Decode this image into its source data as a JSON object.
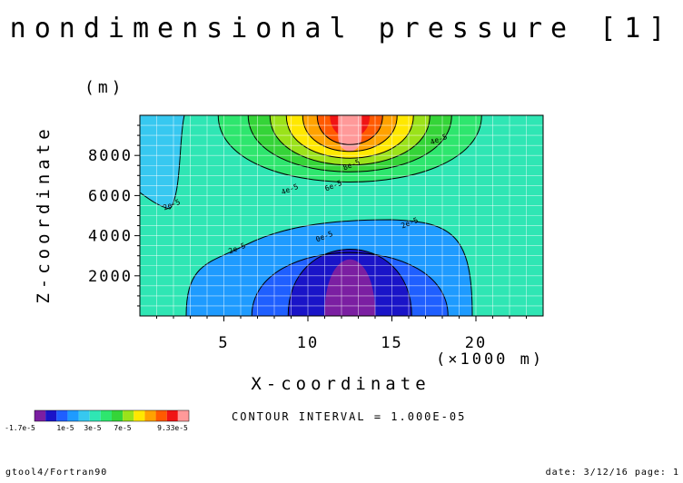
{
  "chart_data": {
    "type": "heatmap",
    "title": "nondimensional pressure [1]",
    "xlabel": "X-coordinate",
    "ylabel": "Z-coordinate",
    "x_unit": "(×1000 m)",
    "y_unit": "(m)",
    "xlim": [
      0,
      24
    ],
    "ylim": [
      0,
      10000
    ],
    "x_ticks": [
      "5",
      "10",
      "15",
      "20"
    ],
    "y_ticks": [
      "2000",
      "4000",
      "6000",
      "8000"
    ],
    "grid": true,
    "contour_labels": [
      "8e-5",
      "6e-5",
      "4e-5",
      "4e-5",
      "2e-5",
      "2e-5",
      "2e-5",
      "0e-5"
    ],
    "colorbar": {
      "labels": [
        "-1.7e-5",
        "1e-5",
        "3e-5",
        "7e-5",
        "9.33e-5"
      ],
      "min": -1.7e-05,
      "max": 9.33e-05,
      "colors": [
        "#7b1fa2",
        "#1a14c8",
        "#1f5fff",
        "#1e9bff",
        "#37c8f0",
        "#2fe6b4",
        "#2ee66e",
        "#35d438",
        "#9be21a",
        "#ffe800",
        "#ffa200",
        "#ff5a00",
        "#f01414",
        "#ff9999"
      ]
    },
    "contour_interval": "CONTOUR INTERVAL = 1.000E-05"
  },
  "footer": {
    "left": "gtool4/Fortran90",
    "right": "date: 3/12/16 page: 1"
  }
}
